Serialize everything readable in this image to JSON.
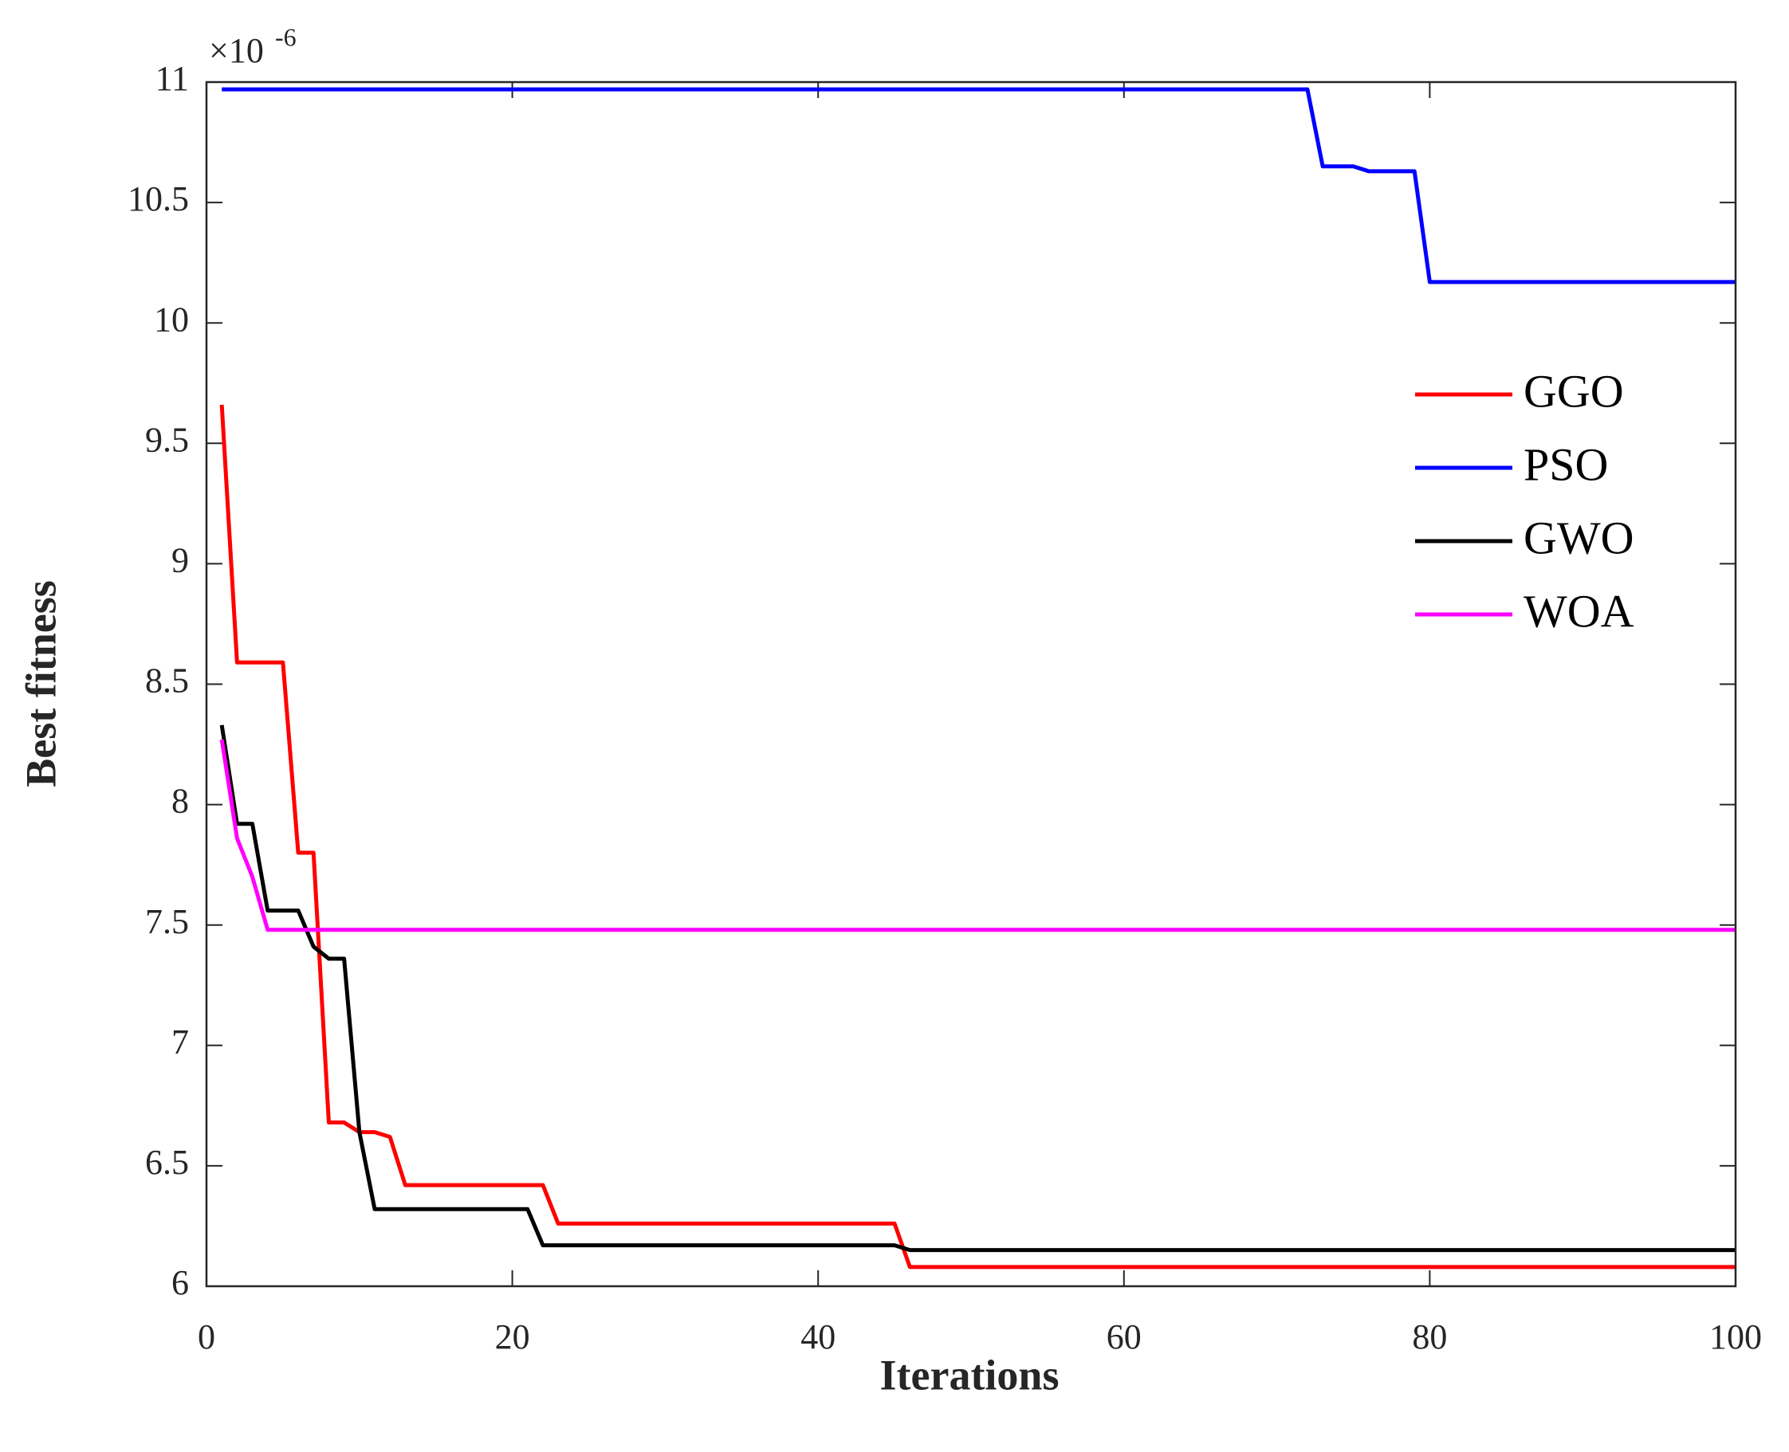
{
  "chart_data": {
    "type": "line",
    "x_label": "Iterations",
    "y_label": "Best fitness",
    "y_multiplier": "×10",
    "y_multiplier_exponent": "-6",
    "x": [
      1,
      2,
      3,
      4,
      5,
      6,
      7,
      8,
      9,
      10,
      11,
      12,
      13,
      14,
      15,
      16,
      17,
      18,
      19,
      20,
      21,
      22,
      23,
      24,
      25,
      26,
      27,
      28,
      29,
      30,
      31,
      32,
      33,
      34,
      35,
      36,
      37,
      38,
      39,
      40,
      41,
      42,
      43,
      44,
      45,
      46,
      47,
      48,
      49,
      50,
      51,
      52,
      53,
      54,
      55,
      56,
      57,
      58,
      59,
      60,
      61,
      62,
      63,
      64,
      65,
      66,
      67,
      68,
      69,
      70,
      71,
      72,
      73,
      74,
      75,
      76,
      77,
      78,
      79,
      80,
      81,
      82,
      83,
      84,
      85,
      86,
      87,
      88,
      89,
      90,
      91,
      92,
      93,
      94,
      95,
      96,
      97,
      98,
      99,
      100
    ],
    "series": [
      {
        "name": "GGO",
        "color": "#ff0000",
        "values": [
          9.66,
          8.59,
          8.59,
          8.59,
          8.59,
          7.8,
          7.8,
          6.68,
          6.68,
          6.64,
          6.64,
          6.62,
          6.42,
          6.42,
          6.42,
          6.42,
          6.42,
          6.42,
          6.42,
          6.42,
          6.42,
          6.42,
          6.26,
          6.26,
          6.26,
          6.26,
          6.26,
          6.26,
          6.26,
          6.26,
          6.26,
          6.26,
          6.26,
          6.26,
          6.26,
          6.26,
          6.26,
          6.26,
          6.26,
          6.26,
          6.26,
          6.26,
          6.26,
          6.26,
          6.26,
          6.08,
          6.08,
          6.08,
          6.08,
          6.08,
          6.08,
          6.08,
          6.08,
          6.08,
          6.08,
          6.08,
          6.08,
          6.08,
          6.08,
          6.08,
          6.08,
          6.08,
          6.08,
          6.08,
          6.08,
          6.08,
          6.08,
          6.08,
          6.08,
          6.08,
          6.08,
          6.08,
          6.08,
          6.08,
          6.08,
          6.08,
          6.08,
          6.08,
          6.08,
          6.08,
          6.08,
          6.08,
          6.08,
          6.08,
          6.08,
          6.08,
          6.08,
          6.08,
          6.08,
          6.08,
          6.08,
          6.08,
          6.08,
          6.08,
          6.08,
          6.08,
          6.08,
          6.08,
          6.08,
          6.08
        ]
      },
      {
        "name": "PSO",
        "color": "#0000ff",
        "values": [
          10.97,
          10.97,
          10.97,
          10.97,
          10.97,
          10.97,
          10.97,
          10.97,
          10.97,
          10.97,
          10.97,
          10.97,
          10.97,
          10.97,
          10.97,
          10.97,
          10.97,
          10.97,
          10.97,
          10.97,
          10.97,
          10.97,
          10.97,
          10.97,
          10.97,
          10.97,
          10.97,
          10.97,
          10.97,
          10.97,
          10.97,
          10.97,
          10.97,
          10.97,
          10.97,
          10.97,
          10.97,
          10.97,
          10.97,
          10.97,
          10.97,
          10.97,
          10.97,
          10.97,
          10.97,
          10.97,
          10.97,
          10.97,
          10.97,
          10.97,
          10.97,
          10.97,
          10.97,
          10.97,
          10.97,
          10.97,
          10.97,
          10.97,
          10.97,
          10.97,
          10.97,
          10.97,
          10.97,
          10.97,
          10.97,
          10.97,
          10.97,
          10.97,
          10.97,
          10.97,
          10.97,
          10.97,
          10.65,
          10.65,
          10.65,
          10.63,
          10.63,
          10.63,
          10.63,
          10.17,
          10.17,
          10.17,
          10.17,
          10.17,
          10.17,
          10.17,
          10.17,
          10.17,
          10.17,
          10.17,
          10.17,
          10.17,
          10.17,
          10.17,
          10.17,
          10.17,
          10.17,
          10.17,
          10.17,
          10.17
        ]
      },
      {
        "name": "GWO",
        "color": "#000000",
        "values": [
          8.33,
          7.92,
          7.92,
          7.56,
          7.56,
          7.56,
          7.41,
          7.36,
          7.36,
          6.64,
          6.32,
          6.32,
          6.32,
          6.32,
          6.32,
          6.32,
          6.32,
          6.32,
          6.32,
          6.32,
          6.32,
          6.17,
          6.17,
          6.17,
          6.17,
          6.17,
          6.17,
          6.17,
          6.17,
          6.17,
          6.17,
          6.17,
          6.17,
          6.17,
          6.17,
          6.17,
          6.17,
          6.17,
          6.17,
          6.17,
          6.17,
          6.17,
          6.17,
          6.17,
          6.17,
          6.15,
          6.15,
          6.15,
          6.15,
          6.15,
          6.15,
          6.15,
          6.15,
          6.15,
          6.15,
          6.15,
          6.15,
          6.15,
          6.15,
          6.15,
          6.15,
          6.15,
          6.15,
          6.15,
          6.15,
          6.15,
          6.15,
          6.15,
          6.15,
          6.15,
          6.15,
          6.15,
          6.15,
          6.15,
          6.15,
          6.15,
          6.15,
          6.15,
          6.15,
          6.15,
          6.15,
          6.15,
          6.15,
          6.15,
          6.15,
          6.15,
          6.15,
          6.15,
          6.15,
          6.15,
          6.15,
          6.15,
          6.15,
          6.15,
          6.15,
          6.15,
          6.15,
          6.15,
          6.15,
          6.15
        ]
      },
      {
        "name": "WOA",
        "color": "#ff00ff",
        "values": [
          8.27,
          7.86,
          7.7,
          7.48,
          7.48,
          7.48,
          7.48,
          7.48,
          7.48,
          7.48,
          7.48,
          7.48,
          7.48,
          7.48,
          7.48,
          7.48,
          7.48,
          7.48,
          7.48,
          7.48,
          7.48,
          7.48,
          7.48,
          7.48,
          7.48,
          7.48,
          7.48,
          7.48,
          7.48,
          7.48,
          7.48,
          7.48,
          7.48,
          7.48,
          7.48,
          7.48,
          7.48,
          7.48,
          7.48,
          7.48,
          7.48,
          7.48,
          7.48,
          7.48,
          7.48,
          7.48,
          7.48,
          7.48,
          7.48,
          7.48,
          7.48,
          7.48,
          7.48,
          7.48,
          7.48,
          7.48,
          7.48,
          7.48,
          7.48,
          7.48,
          7.48,
          7.48,
          7.48,
          7.48,
          7.48,
          7.48,
          7.48,
          7.48,
          7.48,
          7.48,
          7.48,
          7.48,
          7.48,
          7.48,
          7.48,
          7.48,
          7.48,
          7.48,
          7.48,
          7.48,
          7.48,
          7.48,
          7.48,
          7.48,
          7.48,
          7.48,
          7.48,
          7.48,
          7.48,
          7.48,
          7.48,
          7.48,
          7.48,
          7.48,
          7.48,
          7.48,
          7.48,
          7.48,
          7.48,
          7.48
        ]
      }
    ],
    "xlim": [
      0,
      100
    ],
    "xticks": [
      0,
      20,
      40,
      60,
      80,
      100
    ],
    "ylim": [
      6,
      11
    ],
    "yticks": [
      6,
      6.5,
      7,
      7.5,
      8,
      8.5,
      9,
      9.5,
      10,
      10.5,
      11
    ],
    "grid": false,
    "legend": "upper right"
  }
}
